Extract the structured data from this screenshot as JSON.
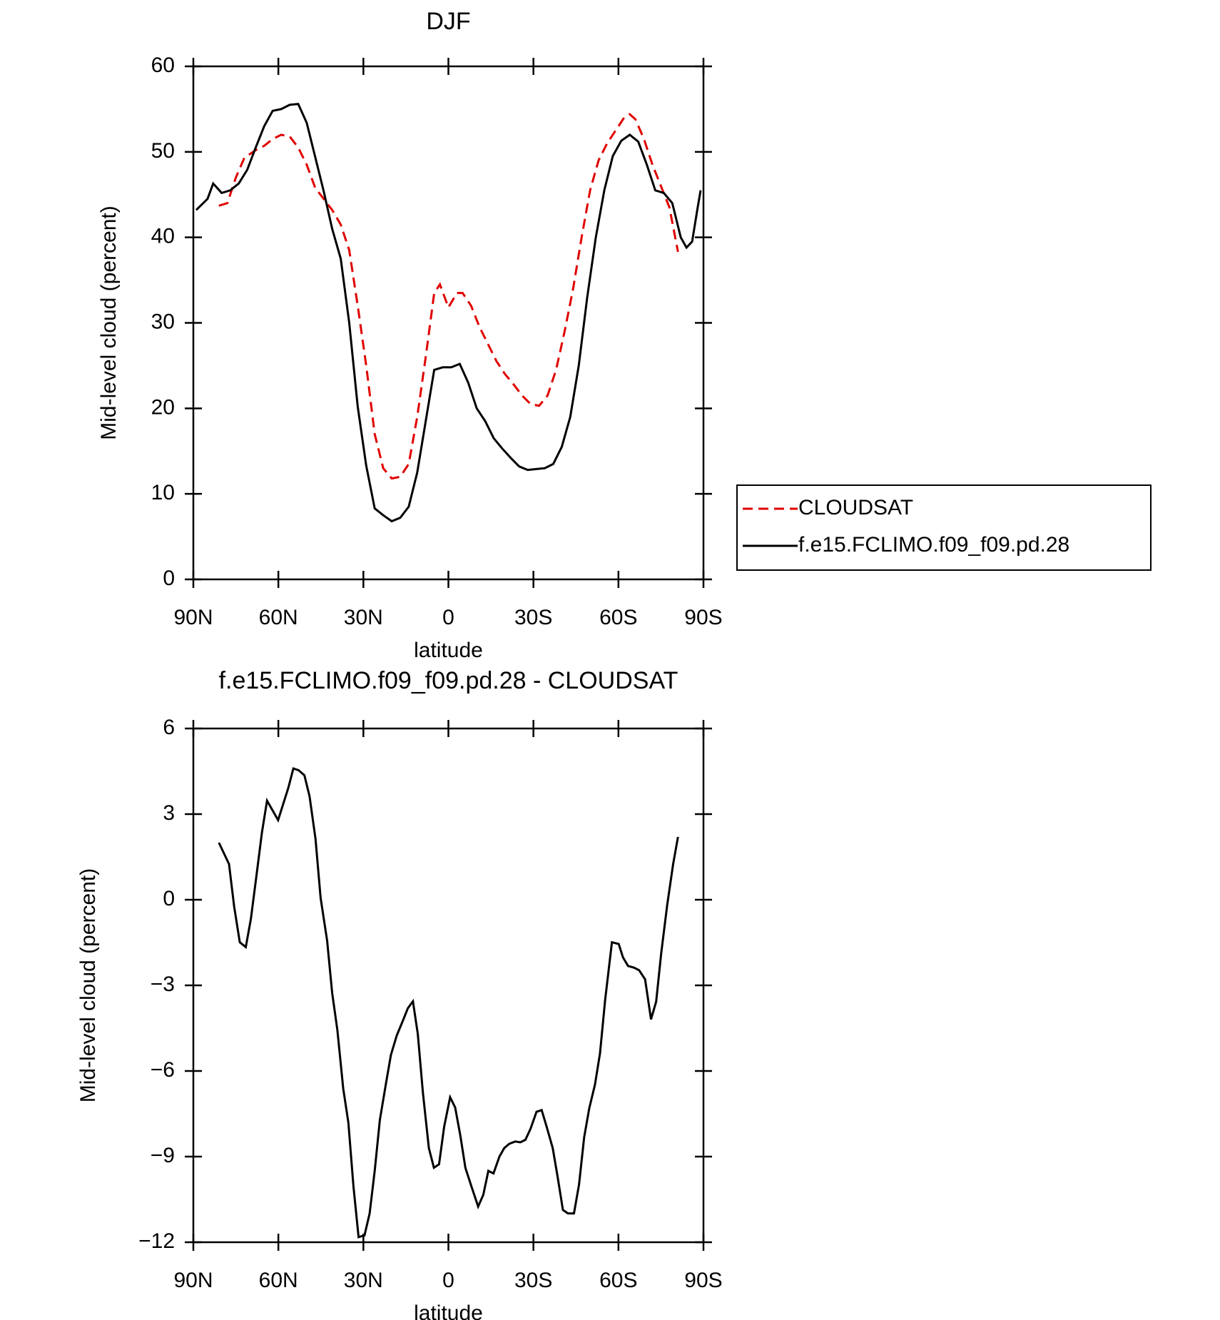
{
  "chart_data": [
    {
      "type": "line",
      "title": "DJF",
      "xlabel": "latitude",
      "ylabel": "Mid-level cloud (percent)",
      "xlim": [
        90,
        -90
      ],
      "xticks": [
        {
          "value": 90,
          "label": "90N"
        },
        {
          "value": 60,
          "label": "60N"
        },
        {
          "value": 30,
          "label": "30N"
        },
        0,
        {
          "value": -30,
          "label": "30S"
        },
        {
          "value": -60,
          "label": "60S"
        },
        {
          "value": -90,
          "label": "90S"
        }
      ],
      "ylim": [
        0,
        60
      ],
      "yticks": [
        0,
        10,
        20,
        30,
        40,
        50,
        60
      ],
      "legend": "right",
      "series": [
        {
          "name": "CLOUDSAT",
          "color": "#e00000",
          "dash": true,
          "x": [
            81,
            78,
            75,
            72,
            68,
            65,
            62,
            59,
            56,
            53,
            50,
            47,
            44,
            41,
            38,
            35,
            32,
            29,
            26,
            23,
            20,
            17,
            14,
            11,
            8,
            5,
            3,
            0,
            -3,
            -5,
            -8,
            -11,
            -14,
            -17,
            -20,
            -23,
            -26,
            -29,
            -32,
            -35,
            -38,
            -41,
            -44,
            -47,
            -50,
            -53,
            -56,
            -59,
            -62,
            -64,
            -66,
            -69,
            -72,
            -75,
            -78,
            -81
          ],
          "values": [
            43.7,
            44.0,
            47,
            49.3,
            50.2,
            50.7,
            51.5,
            52.0,
            51.8,
            50.5,
            48.5,
            45.8,
            44.5,
            43.2,
            41.5,
            38.5,
            32,
            25,
            17,
            13,
            11.8,
            12.0,
            13.5,
            19,
            26,
            33.5,
            34.5,
            31.8,
            33.5,
            33.5,
            32,
            29.5,
            27.5,
            25.5,
            24,
            22.8,
            21.5,
            20.5,
            20.3,
            21.5,
            24.5,
            29,
            34,
            40,
            45.5,
            49,
            51,
            52.5,
            54.0,
            54.4,
            53.8,
            51.5,
            48.5,
            46,
            43.5,
            38.3
          ]
        },
        {
          "name": "f.e15.FCLIMO.f09_f09.pd.28",
          "color": "#000000",
          "dash": false,
          "x": [
            89,
            85,
            83,
            80,
            77,
            74,
            71,
            68,
            65,
            62,
            59,
            56,
            53,
            50,
            47,
            44,
            41,
            38,
            35,
            32,
            29,
            26,
            23,
            20,
            17,
            14,
            11,
            8,
            5,
            2,
            -1,
            -4,
            -7,
            -10,
            -13,
            -16,
            -19,
            -22,
            -25,
            -28,
            -31,
            -34,
            -37,
            -40,
            -43,
            -46,
            -49,
            -52,
            -55,
            -58,
            -61,
            -64,
            -67,
            -70,
            -73,
            -76,
            -79,
            -82,
            -84,
            -86,
            -88,
            -89
          ],
          "values": [
            43.2,
            44.5,
            46.3,
            45.2,
            45.5,
            46.3,
            47.9,
            50.5,
            53.0,
            54.8,
            55.0,
            55.5,
            55.6,
            53.4,
            49.4,
            45.4,
            41,
            37.5,
            30,
            20.2,
            13.3,
            8.3,
            7.5,
            6.8,
            7.2,
            8.5,
            12.5,
            18.5,
            24.5,
            24.8,
            24.8,
            25.2,
            23.0,
            20.0,
            18.5,
            16.5,
            15.3,
            14.2,
            13.2,
            12.8,
            12.9,
            13.0,
            13.5,
            15.5,
            19,
            25,
            33,
            40,
            45.5,
            49.5,
            51.3,
            52.0,
            51.2,
            48.5,
            45.5,
            45.2,
            44.0,
            40.0,
            38.8,
            39.5,
            43.6,
            45.5
          ]
        }
      ]
    },
    {
      "type": "line",
      "title": "f.e15.FCLIMO.f09_f09.pd.28 - CLOUDSAT",
      "xlabel": "latitude",
      "ylabel": "Mid-level cloud (percent)",
      "xlim": [
        90,
        -90
      ],
      "xticks": [
        {
          "value": 90,
          "label": "90N"
        },
        {
          "value": 60,
          "label": "60N"
        },
        {
          "value": 30,
          "label": "30N"
        },
        0,
        {
          "value": -30,
          "label": "30S"
        },
        {
          "value": -60,
          "label": "60S"
        },
        {
          "value": -90,
          "label": "90S"
        }
      ],
      "ylim": [
        -12,
        6
      ],
      "yticks": [
        {
          "value": -12,
          "label": "−12"
        },
        {
          "value": -9,
          "label": "−9"
        },
        {
          "value": -6,
          "label": "−6"
        },
        {
          "value": -3,
          "label": "−3"
        },
        0,
        3,
        6
      ],
      "series": [
        {
          "color": "#000000",
          "dash": false,
          "x": [
            81,
            77.4,
            75.6,
            73.6,
            71.5,
            69.7,
            67.6,
            65.8,
            64,
            60.1,
            56.5,
            54.7,
            52.9,
            50.8,
            49,
            46.9,
            45.1,
            42.8,
            41,
            39.2,
            37.1,
            35.3,
            33.5,
            31.7,
            29.6,
            27.8,
            26,
            24.2,
            22.1,
            20.3,
            18.2,
            16.1,
            14.3,
            12.5,
            10.8,
            9,
            6.9,
            5.1,
            3.3,
            1.5,
            -0.6,
            -2.4,
            -4.2,
            -6,
            -8.1,
            -10.5,
            -12.3,
            -14.1,
            -15.9,
            -18,
            -19.7,
            -21.5,
            -23.6,
            -25.4,
            -27.2,
            -29,
            -31.1,
            -32.9,
            -34.7,
            -36.8,
            -38.6,
            -40.4,
            -42.2,
            -44.3,
            -46.1,
            -47.9,
            -49.7,
            -51.7,
            -53.5,
            -55.3,
            -57.7,
            -60.1,
            -61.6,
            -63.4,
            -65.5,
            -67.3,
            -69.4,
            -71.5,
            -73.3,
            -75.1,
            -77.2,
            -79.3,
            -81
          ],
          "values": [
            2.0,
            1.25,
            -0.24,
            -1.49,
            -1.66,
            -0.68,
            0.95,
            2.35,
            3.47,
            2.79,
            3.92,
            4.6,
            4.54,
            4.36,
            3.62,
            2.14,
            0.06,
            -1.43,
            -3.27,
            -4.55,
            -6.62,
            -7.81,
            -10.04,
            -11.82,
            -11.76,
            -10.99,
            -9.5,
            -7.72,
            -6.48,
            -5.44,
            -4.75,
            -4.25,
            -3.8,
            -3.56,
            -4.7,
            -6.77,
            -8.7,
            -9.39,
            -9.27,
            -7.96,
            -6.92,
            -7.28,
            -8.26,
            -9.39,
            -10.04,
            -10.75,
            -10.34,
            -9.5,
            -9.59,
            -9.0,
            -8.7,
            -8.55,
            -8.47,
            -8.5,
            -8.41,
            -8.02,
            -7.43,
            -7.37,
            -7.96,
            -8.7,
            -9.74,
            -10.87,
            -10.99,
            -10.99,
            -9.98,
            -8.32,
            -7.31,
            -6.48,
            -5.38,
            -3.51,
            -1.49,
            -1.55,
            -2.02,
            -2.32,
            -2.38,
            -2.47,
            -2.79,
            -4.19,
            -3.57,
            -1.87,
            -0.18,
            1.25,
            2.2
          ]
        }
      ]
    }
  ]
}
